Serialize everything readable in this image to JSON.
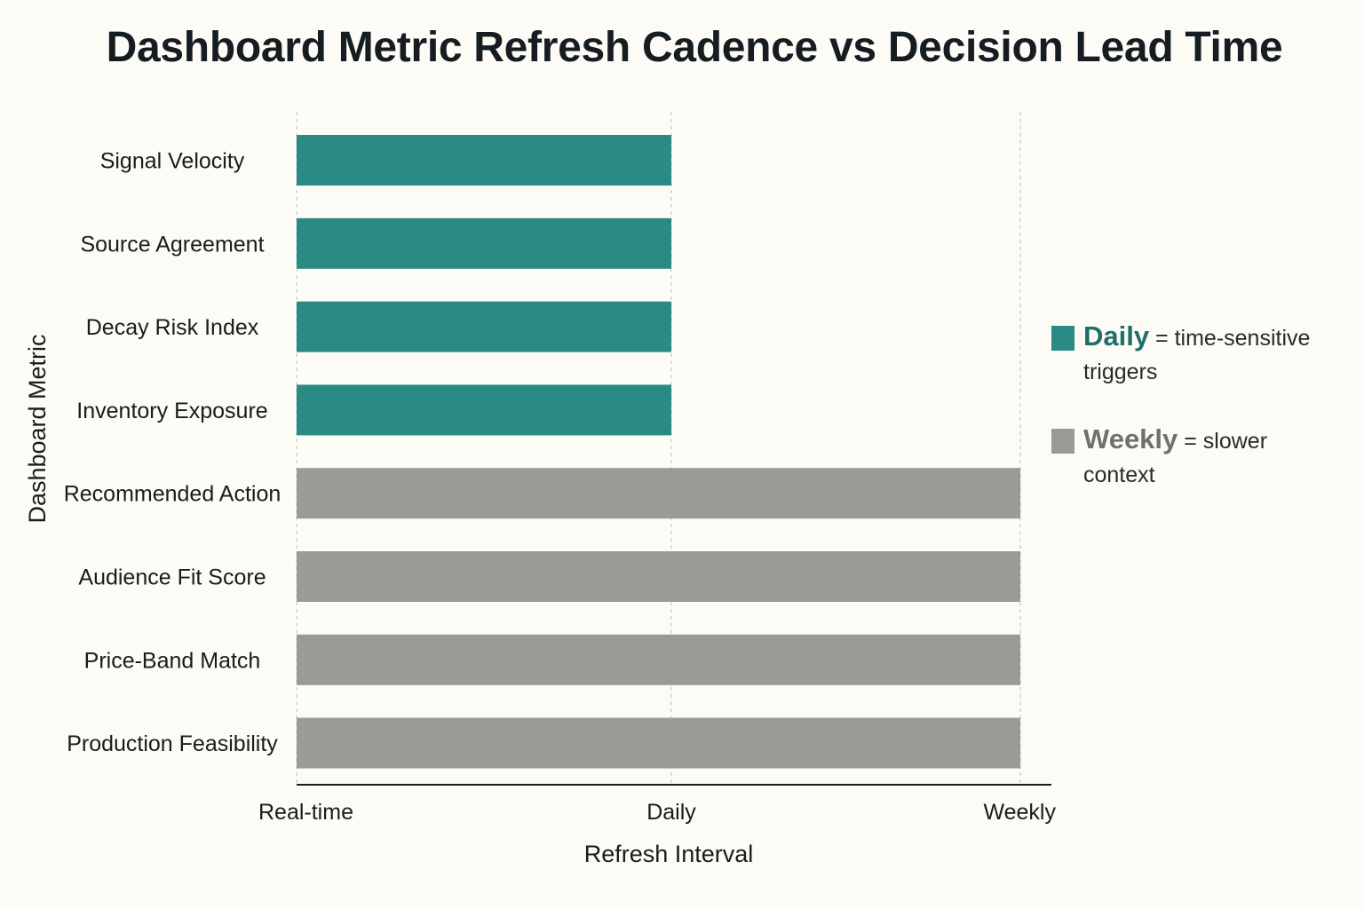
{
  "chart_data": {
    "type": "bar",
    "orientation": "horizontal",
    "title": "Dashboard Metric Refresh Cadence vs Decision Lead Time",
    "xlabel": "Refresh Interval",
    "ylabel": "Dashboard Metric",
    "x_ticks": [
      "Real-time",
      "Daily",
      "Weekly"
    ],
    "grid": "vertical dashed at ticks",
    "legend_position": "right",
    "categories": [
      "Signal Velocity",
      "Source Agreement",
      "Decay Risk Index",
      "Inventory Exposure",
      "Recommended Action",
      "Audience Fit Score",
      "Price-Band Match",
      "Production Feasibility"
    ],
    "values": [
      "Daily",
      "Daily",
      "Daily",
      "Daily",
      "Weekly",
      "Weekly",
      "Weekly",
      "Weekly"
    ],
    "colors": {
      "Daily": "#2a8a84",
      "Weekly": "#9b9b96"
    },
    "legend": [
      {
        "name": "Daily",
        "description": "= time-sensitive triggers",
        "color": "#2a8a84",
        "text_color": "#1f6e69"
      },
      {
        "name": "Weekly",
        "description": "= slower context",
        "color": "#9b9b96",
        "text_color": "#707070"
      }
    ]
  }
}
